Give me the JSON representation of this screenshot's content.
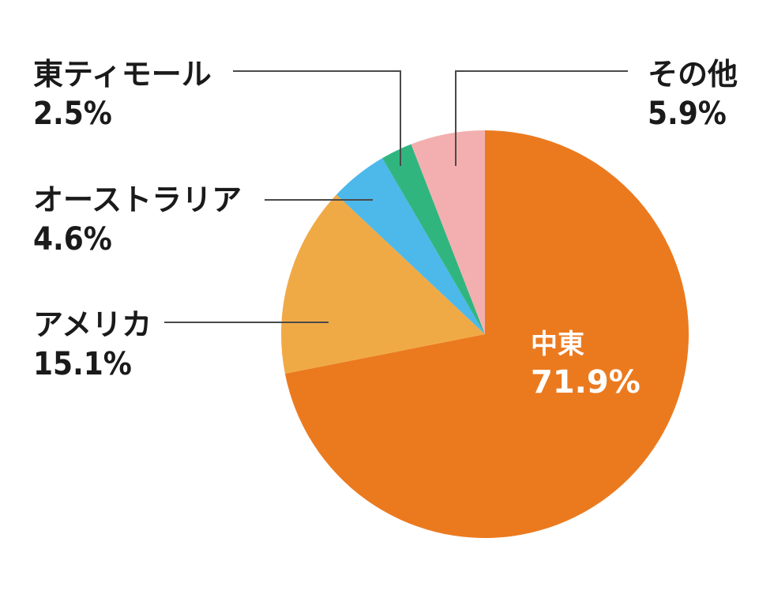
{
  "chart_data": {
    "type": "pie",
    "title": "",
    "slices": [
      {
        "label": "中東",
        "value": 71.9,
        "display": "71.9%",
        "color": "#EB7A1F"
      },
      {
        "label": "アメリカ",
        "value": 15.1,
        "display": "15.1%",
        "color": "#F0AA45"
      },
      {
        "label": "オーストラリア",
        "value": 4.6,
        "display": "4.6%",
        "color": "#4DB8EA"
      },
      {
        "label": "東ティモール",
        "value": 2.5,
        "display": "2.5%",
        "color": "#30B57F"
      },
      {
        "label": "その他",
        "value": 5.9,
        "display": "5.9%",
        "color": "#F3AFAF"
      }
    ],
    "start": "12 o'clock",
    "direction": "clockwise",
    "legend": "none"
  }
}
